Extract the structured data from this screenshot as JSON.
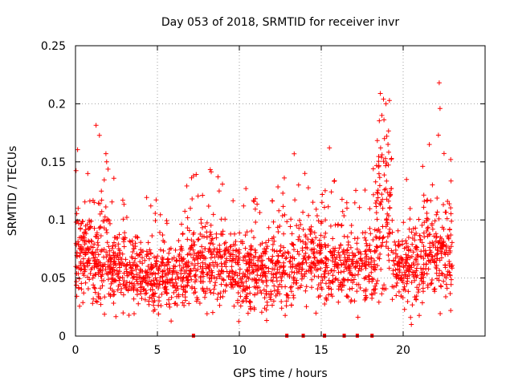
{
  "chart_data": {
    "type": "scatter",
    "title": "Day 053 of 2018, SRMTID for receiver invr",
    "xlabel": "GPS time / hours",
    "ylabel": "SRMTID / TECUs",
    "xlim": [
      0,
      25
    ],
    "ylim": [
      0,
      0.25
    ],
    "x_ticks": [
      0,
      5,
      10,
      15,
      20
    ],
    "x_tick_labels": [
      "0",
      "5",
      "10",
      "15",
      "20"
    ],
    "y_ticks": [
      0,
      0.05,
      0.1,
      0.15,
      0.2,
      0.25
    ],
    "y_tick_labels": [
      "0",
      "0.05",
      "0.1",
      "0.15",
      "0.2",
      "0.25"
    ],
    "grid": true,
    "marker": "+",
    "color": "#ff0000",
    "gap_markers_x": [
      7.2,
      12.9,
      13.9,
      15.2,
      16.4,
      17.2,
      18.1
    ],
    "series": [
      {
        "name": "SRMTID",
        "segments": [
          {
            "start": 0.0,
            "end": 2.0,
            "base": 0.072,
            "spread": 0.027,
            "count": 230
          },
          {
            "start": 2.0,
            "end": 4.0,
            "base": 0.058,
            "spread": 0.02,
            "count": 200
          },
          {
            "start": 4.0,
            "end": 7.0,
            "base": 0.053,
            "spread": 0.019,
            "count": 290
          },
          {
            "start": 7.0,
            "end": 9.5,
            "base": 0.062,
            "spread": 0.022,
            "count": 230
          },
          {
            "start": 9.5,
            "end": 12.0,
            "base": 0.055,
            "spread": 0.021,
            "count": 250
          },
          {
            "start": 12.0,
            "end": 13.6,
            "base": 0.058,
            "spread": 0.023,
            "count": 140
          },
          {
            "start": 13.6,
            "end": 15.2,
            "base": 0.068,
            "spread": 0.023,
            "count": 140
          },
          {
            "start": 15.2,
            "end": 18.3,
            "base": 0.06,
            "spread": 0.021,
            "count": 270
          },
          {
            "start": 18.3,
            "end": 19.3,
            "base": 0.105,
            "spread": 0.04,
            "count": 110
          },
          {
            "start": 19.3,
            "end": 21.2,
            "base": 0.062,
            "spread": 0.024,
            "count": 180
          },
          {
            "start": 21.2,
            "end": 23.0,
            "base": 0.078,
            "spread": 0.03,
            "count": 180
          }
        ],
        "highlights": [
          {
            "x": 22.2,
            "y": 0.218
          },
          {
            "x": 22.25,
            "y": 0.196
          },
          {
            "x": 18.8,
            "y": 0.204
          },
          {
            "x": 18.95,
            "y": 0.2
          },
          {
            "x": 18.7,
            "y": 0.19
          },
          {
            "x": 19.0,
            "y": 0.172
          },
          {
            "x": 22.15,
            "y": 0.173
          },
          {
            "x": 15.5,
            "y": 0.162
          },
          {
            "x": 13.35,
            "y": 0.157
          },
          {
            "x": 21.6,
            "y": 0.165
          },
          {
            "x": 1.9,
            "y": 0.15
          },
          {
            "x": 10.4,
            "y": 0.127
          },
          {
            "x": 7.2,
            "y": 0.138
          },
          {
            "x": 14.0,
            "y": 0.14
          },
          {
            "x": 22.9,
            "y": 0.152
          },
          {
            "x": 22.9,
            "y": 0.022
          },
          {
            "x": 20.5,
            "y": 0.01
          },
          {
            "x": 20.45,
            "y": 0.016
          }
        ]
      }
    ]
  }
}
